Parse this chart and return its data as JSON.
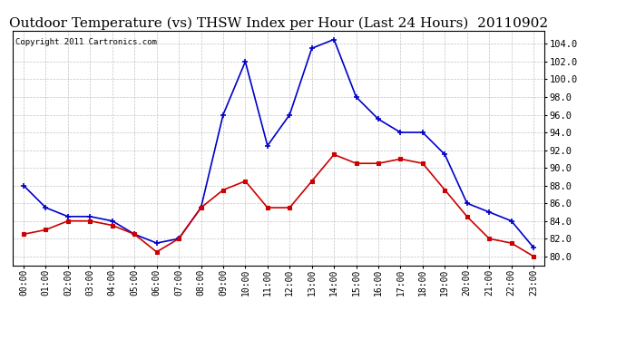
{
  "title": "Outdoor Temperature (vs) THSW Index per Hour (Last 24 Hours)  20110902",
  "copyright": "Copyright 2011 Cartronics.com",
  "x_labels": [
    "00:00",
    "01:00",
    "02:00",
    "03:00",
    "04:00",
    "05:00",
    "06:00",
    "07:00",
    "08:00",
    "09:00",
    "10:00",
    "11:00",
    "12:00",
    "13:00",
    "14:00",
    "15:00",
    "16:00",
    "17:00",
    "18:00",
    "19:00",
    "20:00",
    "21:00",
    "22:00",
    "23:00"
  ],
  "blue_data": [
    88.0,
    85.5,
    84.5,
    84.5,
    84.0,
    82.5,
    81.5,
    82.0,
    85.5,
    96.0,
    102.0,
    92.5,
    96.0,
    103.5,
    104.5,
    98.0,
    95.5,
    94.0,
    94.0,
    91.5,
    86.0,
    85.0,
    84.0,
    81.0
  ],
  "red_data": [
    82.5,
    83.0,
    84.0,
    84.0,
    83.5,
    82.5,
    80.5,
    82.0,
    85.5,
    87.5,
    88.5,
    85.5,
    85.5,
    88.5,
    91.5,
    90.5,
    90.5,
    91.0,
    90.5,
    87.5,
    84.5,
    82.0,
    81.5,
    80.0
  ],
  "ylim": [
    79.0,
    105.5
  ],
  "yticks": [
    80.0,
    82.0,
    84.0,
    86.0,
    88.0,
    90.0,
    92.0,
    94.0,
    96.0,
    98.0,
    100.0,
    102.0,
    104.0
  ],
  "blue_color": "#0000cc",
  "red_color": "#cc0000",
  "grid_color": "#aaaaaa",
  "bg_color": "#ffffff",
  "plot_bg_color": "#ffffff",
  "title_fontsize": 11,
  "copyright_fontsize": 6.5,
  "tick_fontsize": 7,
  "ytick_fontsize": 7.5
}
